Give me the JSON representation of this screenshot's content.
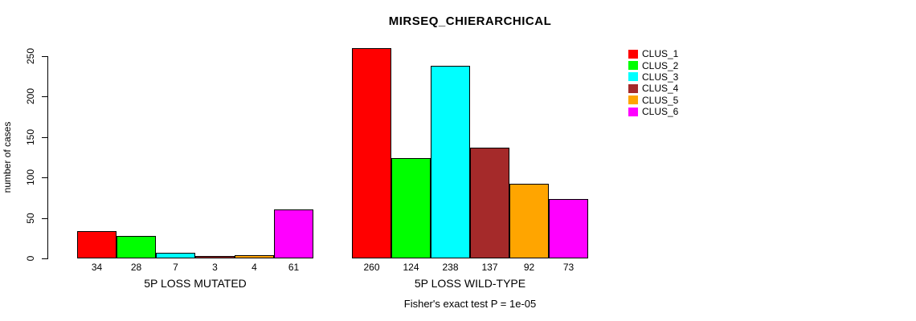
{
  "chart_data": {
    "type": "bar",
    "title": "MIRSEQ_CHIERARCHICAL",
    "ylabel": "number of cases",
    "xlabel": "",
    "caption": "Fisher's exact test P = 1e-05",
    "ylim": [
      0,
      250
    ],
    "yticks": [
      0,
      50,
      100,
      150,
      200,
      250
    ],
    "grid": false,
    "legend_position": "top-right",
    "series": [
      {
        "name": "CLUS_1",
        "color": "#FF0000"
      },
      {
        "name": "CLUS_2",
        "color": "#00FF00"
      },
      {
        "name": "CLUS_3",
        "color": "#00FFFF"
      },
      {
        "name": "CLUS_4",
        "color": "#A52A2A"
      },
      {
        "name": "CLUS_5",
        "color": "#FFA500"
      },
      {
        "name": "CLUS_6",
        "color": "#FF00FF"
      }
    ],
    "groups": [
      {
        "label": "5P LOSS MUTATED",
        "values": [
          34,
          28,
          7,
          3,
          4,
          61
        ]
      },
      {
        "label": "5P LOSS WILD-TYPE",
        "values": [
          260,
          124,
          238,
          137,
          92,
          73
        ]
      }
    ]
  }
}
